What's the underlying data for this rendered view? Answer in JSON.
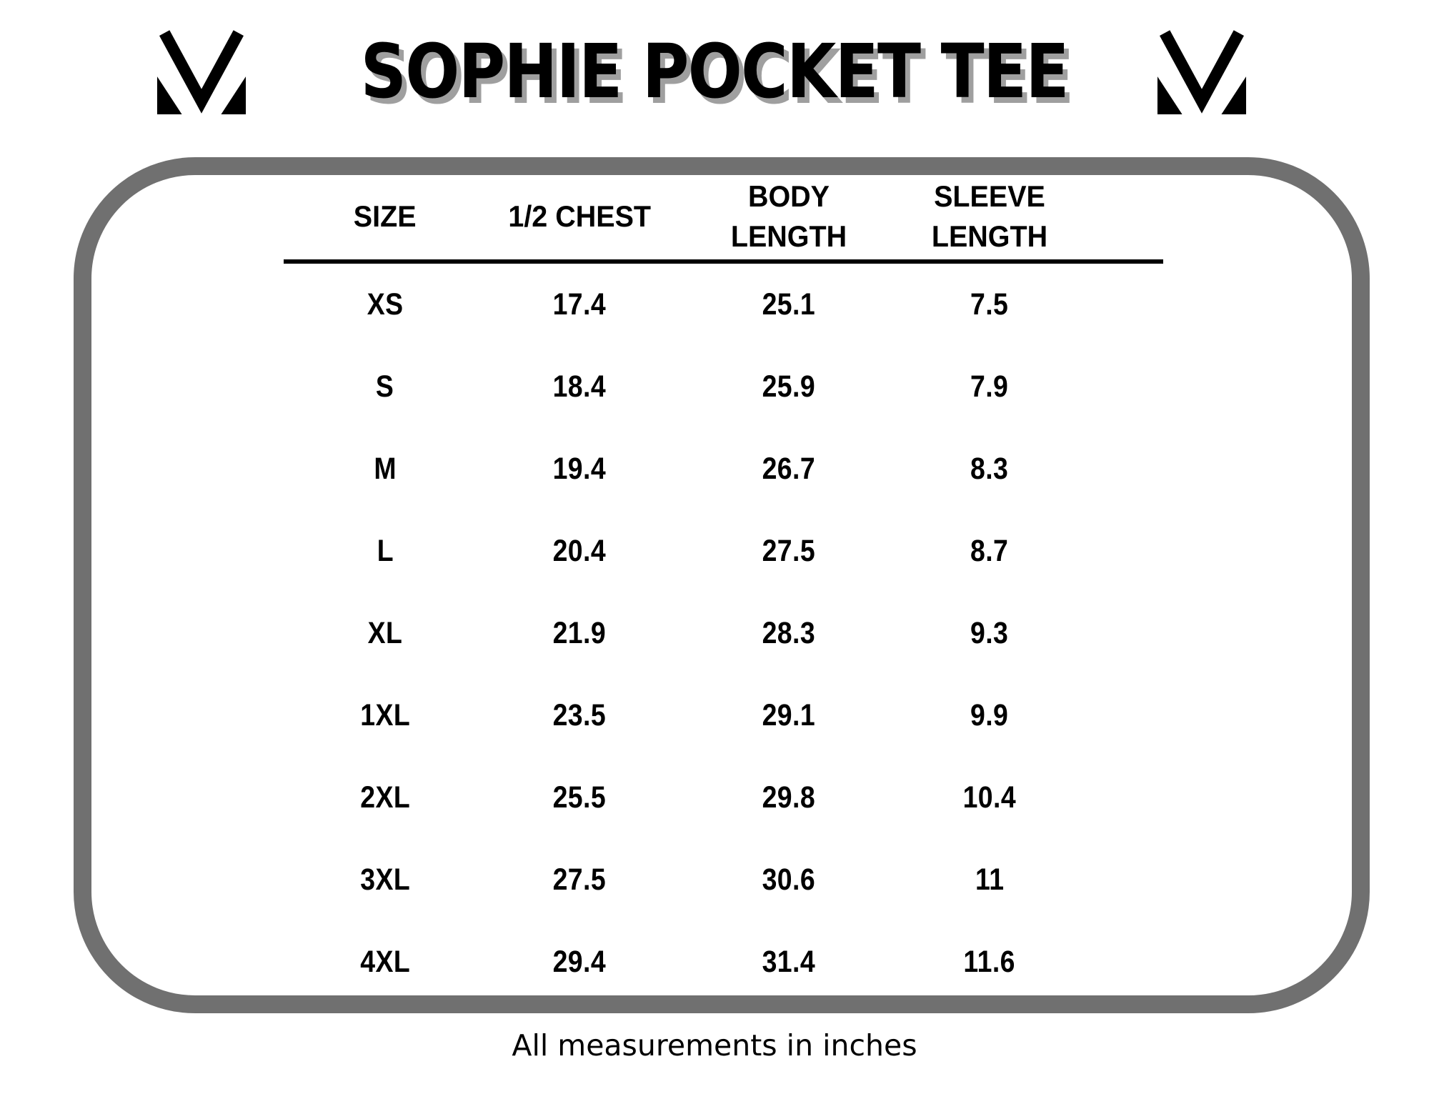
{
  "icons": {
    "brand_logo": "m-monogram"
  },
  "colors": {
    "background": "#ffffff",
    "text": "#000000",
    "panel_border": "#707070",
    "title_shadow": "#9f9f9f",
    "header_rule": "#000000"
  },
  "chart_data": {
    "type": "table",
    "title": "SOPHIE POCKET TEE",
    "columns": [
      "SIZE",
      "1/2 CHEST",
      "BODY LENGTH",
      "SLEEVE LENGTH"
    ],
    "rows": [
      [
        "XS",
        "17.4",
        "25.1",
        "7.5"
      ],
      [
        "S",
        "18.4",
        "25.9",
        "7.9"
      ],
      [
        "M",
        "19.4",
        "26.7",
        "8.3"
      ],
      [
        "L",
        "20.4",
        "27.5",
        "8.7"
      ],
      [
        "XL",
        "21.9",
        "28.3",
        "9.3"
      ],
      [
        "1XL",
        "23.5",
        "29.1",
        "9.9"
      ],
      [
        "2XL",
        "25.5",
        "29.8",
        "10.4"
      ],
      [
        "3XL",
        "27.5",
        "30.6",
        "11"
      ],
      [
        "4XL",
        "29.4",
        "31.4",
        "11.6"
      ]
    ],
    "note": "All measurements in inches",
    "units": "inches",
    "layout": {
      "grid": false,
      "header_divider": true
    }
  }
}
